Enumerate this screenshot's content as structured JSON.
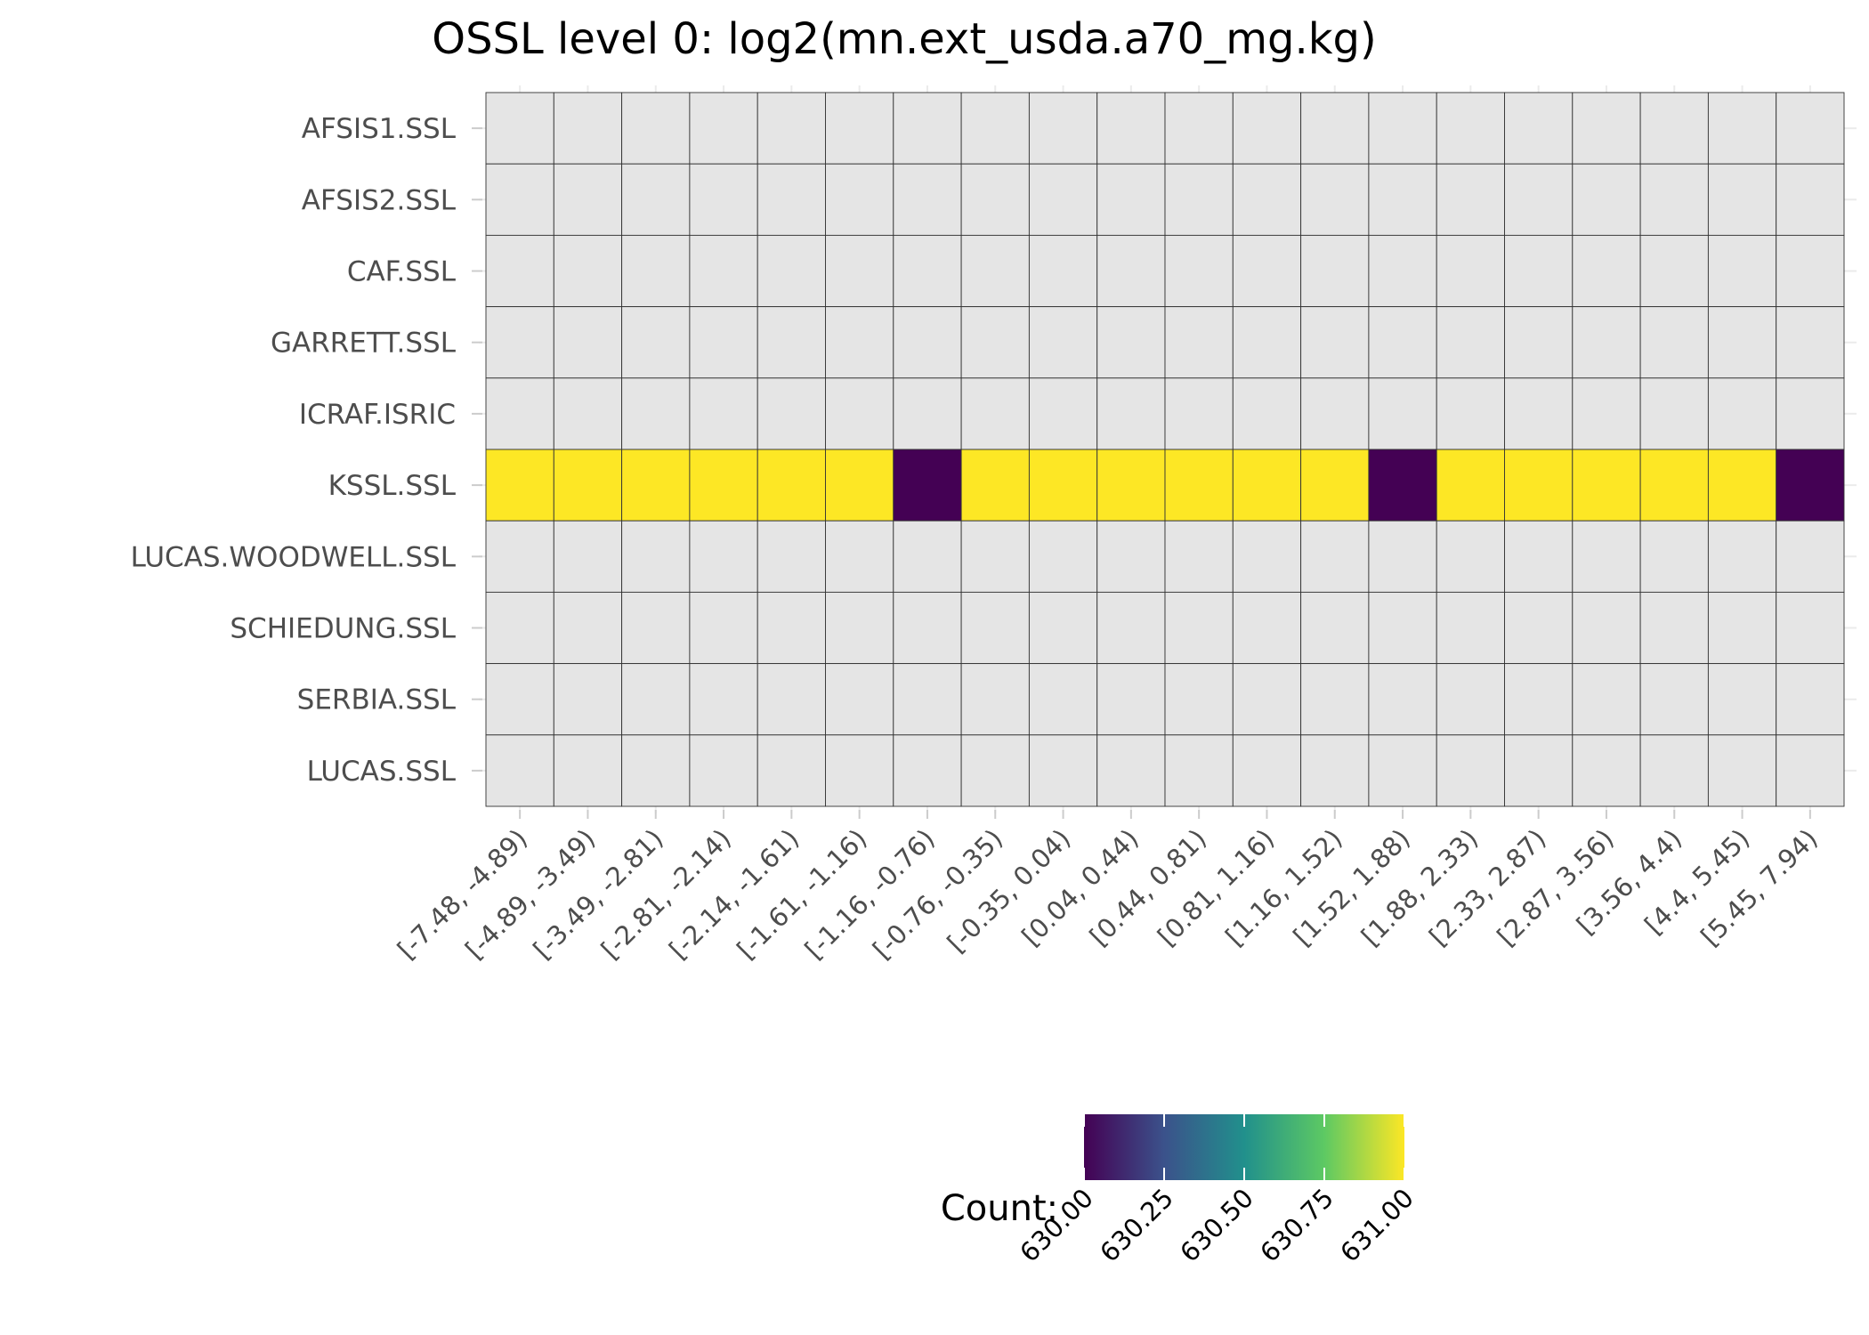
{
  "chart_data": {
    "type": "heatmap",
    "title": "OSSL level 0: log2(mn.ext_usda.a70_mg.kg)",
    "x_categories": [
      "[-7.48, -4.89)",
      "[-4.89, -3.49)",
      "[-3.49, -2.81)",
      "[-2.81, -2.14)",
      "[-2.14, -1.61)",
      "[-1.61, -1.16)",
      "[-1.16, -0.76)",
      "[-0.76, -0.35)",
      "[-0.35, 0.04)",
      "[0.04, 0.44)",
      "[0.44, 0.81)",
      "[0.81, 1.16)",
      "[1.16, 1.52)",
      "[1.52, 1.88)",
      "[1.88, 2.33)",
      "[2.33, 2.87)",
      "[2.87, 3.56)",
      "[3.56, 4.4)",
      "[4.4, 5.45)",
      "[5.45, 7.94)"
    ],
    "y_categories": [
      "AFSIS1.SSL",
      "AFSIS2.SSL",
      "CAF.SSL",
      "GARRETT.SSL",
      "ICRAF.ISRIC",
      "KSSL.SSL",
      "LUCAS.WOODWELL.SSL",
      "SCHIEDUNG.SSL",
      "SERBIA.SSL",
      "LUCAS.SSL"
    ],
    "values": [
      [
        null,
        null,
        null,
        null,
        null,
        null,
        null,
        null,
        null,
        null,
        null,
        null,
        null,
        null,
        null,
        null,
        null,
        null,
        null,
        null
      ],
      [
        null,
        null,
        null,
        null,
        null,
        null,
        null,
        null,
        null,
        null,
        null,
        null,
        null,
        null,
        null,
        null,
        null,
        null,
        null,
        null
      ],
      [
        null,
        null,
        null,
        null,
        null,
        null,
        null,
        null,
        null,
        null,
        null,
        null,
        null,
        null,
        null,
        null,
        null,
        null,
        null,
        null
      ],
      [
        null,
        null,
        null,
        null,
        null,
        null,
        null,
        null,
        null,
        null,
        null,
        null,
        null,
        null,
        null,
        null,
        null,
        null,
        null,
        null
      ],
      [
        null,
        null,
        null,
        null,
        null,
        null,
        null,
        null,
        null,
        null,
        null,
        null,
        null,
        null,
        null,
        null,
        null,
        null,
        null,
        null
      ],
      [
        631,
        631,
        631,
        631,
        631,
        631,
        630,
        631,
        631,
        631,
        631,
        631,
        631,
        630,
        631,
        631,
        631,
        631,
        631,
        630
      ],
      [
        null,
        null,
        null,
        null,
        null,
        null,
        null,
        null,
        null,
        null,
        null,
        null,
        null,
        null,
        null,
        null,
        null,
        null,
        null,
        null
      ],
      [
        null,
        null,
        null,
        null,
        null,
        null,
        null,
        null,
        null,
        null,
        null,
        null,
        null,
        null,
        null,
        null,
        null,
        null,
        null,
        null
      ],
      [
        null,
        null,
        null,
        null,
        null,
        null,
        null,
        null,
        null,
        null,
        null,
        null,
        null,
        null,
        null,
        null,
        null,
        null,
        null,
        null
      ],
      [
        null,
        null,
        null,
        null,
        null,
        null,
        null,
        null,
        null,
        null,
        null,
        null,
        null,
        null,
        null,
        null,
        null,
        null,
        null,
        null
      ]
    ],
    "missing_color": "#e5e5e5",
    "grid_line_color": "#333333",
    "colorscale": "viridis",
    "color_stops": [
      "#440154",
      "#3b528b",
      "#21908c",
      "#5dc963",
      "#fde725"
    ],
    "legend": {
      "title": "Count:",
      "position": "bottom",
      "range": [
        630,
        631
      ],
      "ticks": [
        630,
        630.25,
        630.5,
        630.75,
        631
      ],
      "tick_labels": [
        "630.00",
        "630.25",
        "630.50",
        "630.75",
        "631.00"
      ]
    }
  }
}
